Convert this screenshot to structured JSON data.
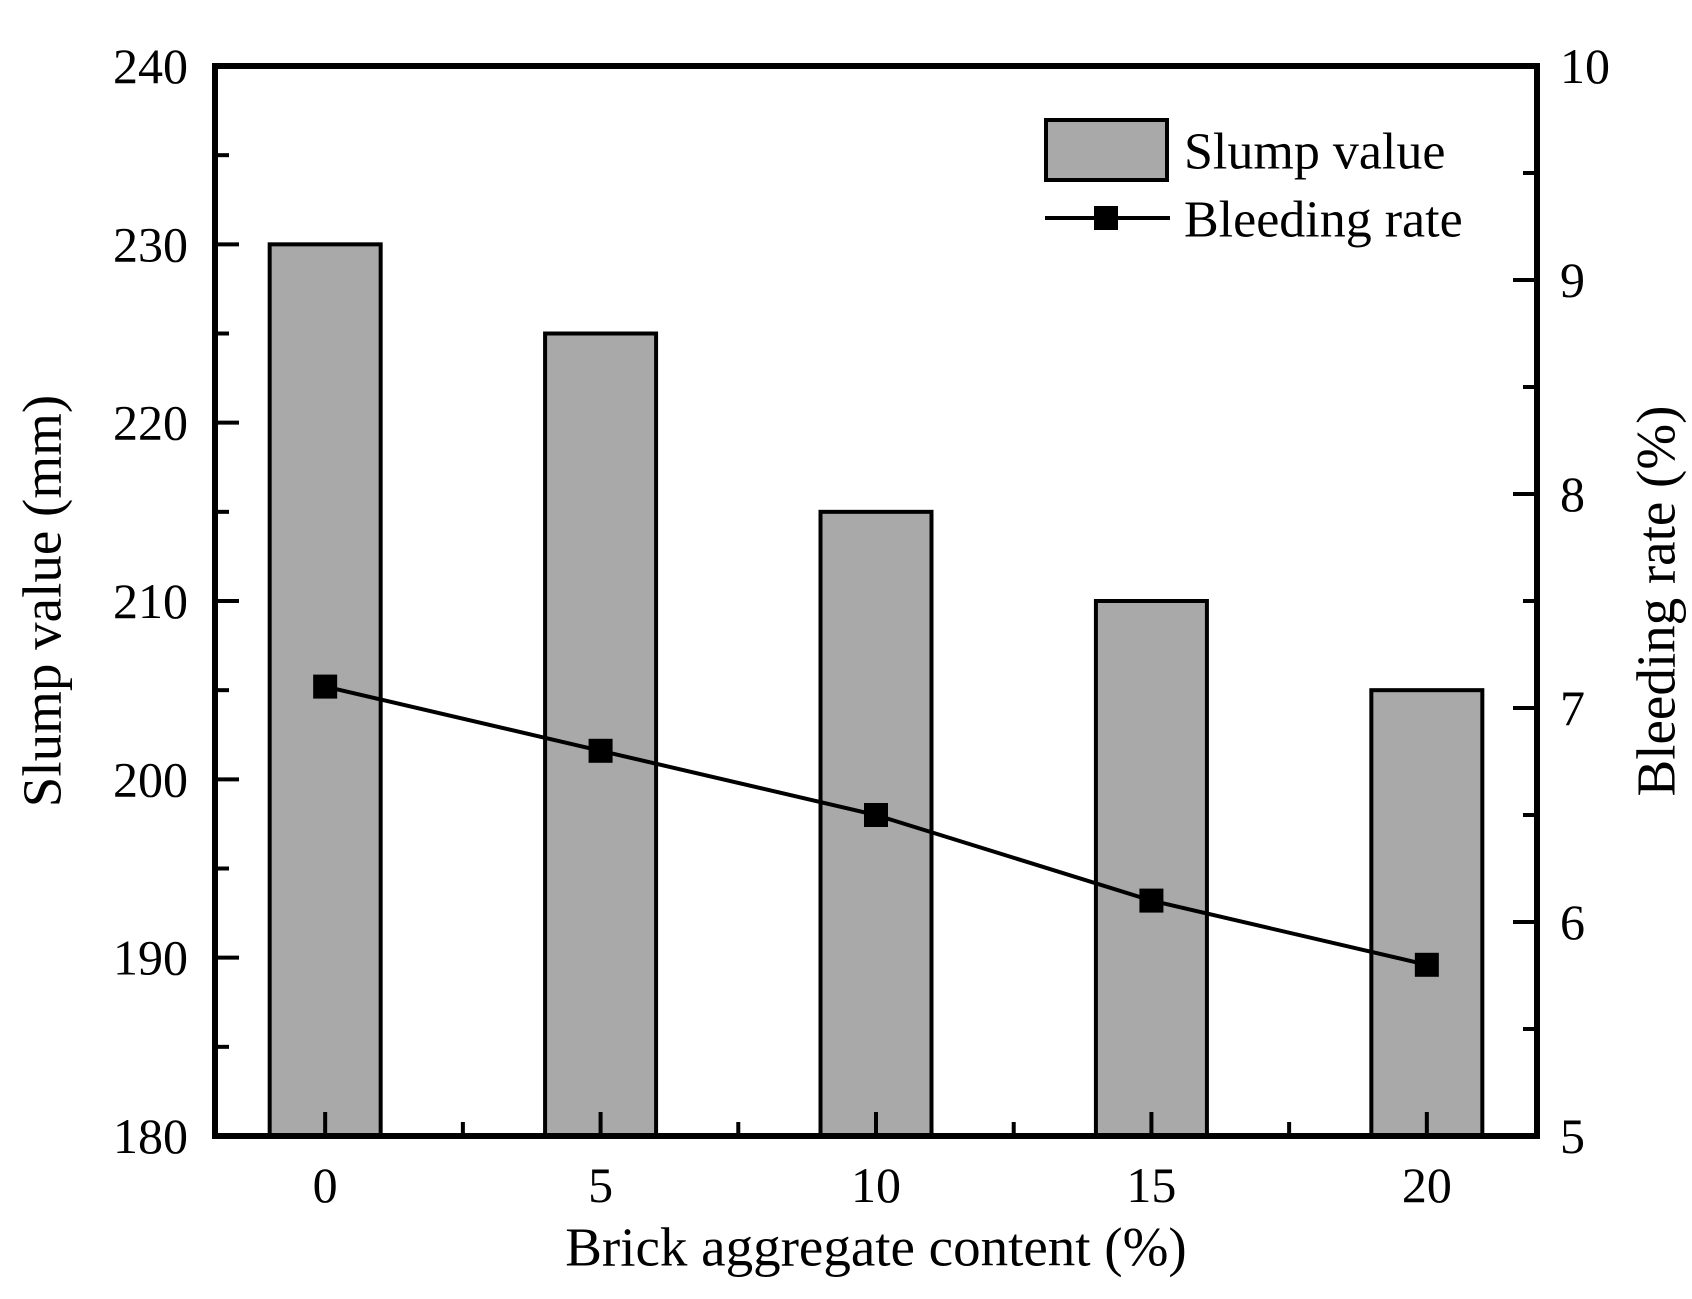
{
  "chart_data": {
    "type": "bar+line",
    "title": "",
    "categories": [
      0,
      5,
      10,
      15,
      20
    ],
    "x_axis": {
      "title": "Brick aggregate content (%)",
      "tick_labels": [
        "0",
        "5",
        "10",
        "15",
        "20"
      ]
    },
    "y_left": {
      "title": "Slump value (mm)",
      "min": 180,
      "max": 240,
      "major_step": 10,
      "minor_step": 5,
      "tick_labels": [
        "180",
        "190",
        "200",
        "210",
        "220",
        "230",
        "240"
      ]
    },
    "y_right": {
      "title": "Bleeding rate (%)",
      "min": 5,
      "max": 10,
      "major_step": 1,
      "minor_step": 0.5,
      "tick_labels": [
        "5",
        "6",
        "7",
        "8",
        "9",
        "10"
      ]
    },
    "series": [
      {
        "name": "Slump value",
        "type": "bar",
        "axis": "left",
        "values": [
          230,
          225,
          215,
          210,
          205
        ],
        "fill_color": "#a9a9a9",
        "edge_color": "#000000"
      },
      {
        "name": "Bleeding rate",
        "type": "line",
        "axis": "right",
        "values": [
          7.1,
          6.8,
          6.5,
          6.1,
          5.8
        ],
        "line_color": "#000000",
        "marker": "filled-square"
      }
    ],
    "legend": {
      "position": "top-right",
      "frame": false,
      "entries": [
        "Slump value",
        "Bleeding rate"
      ]
    },
    "grid": false,
    "background_color": "#ffffff"
  }
}
